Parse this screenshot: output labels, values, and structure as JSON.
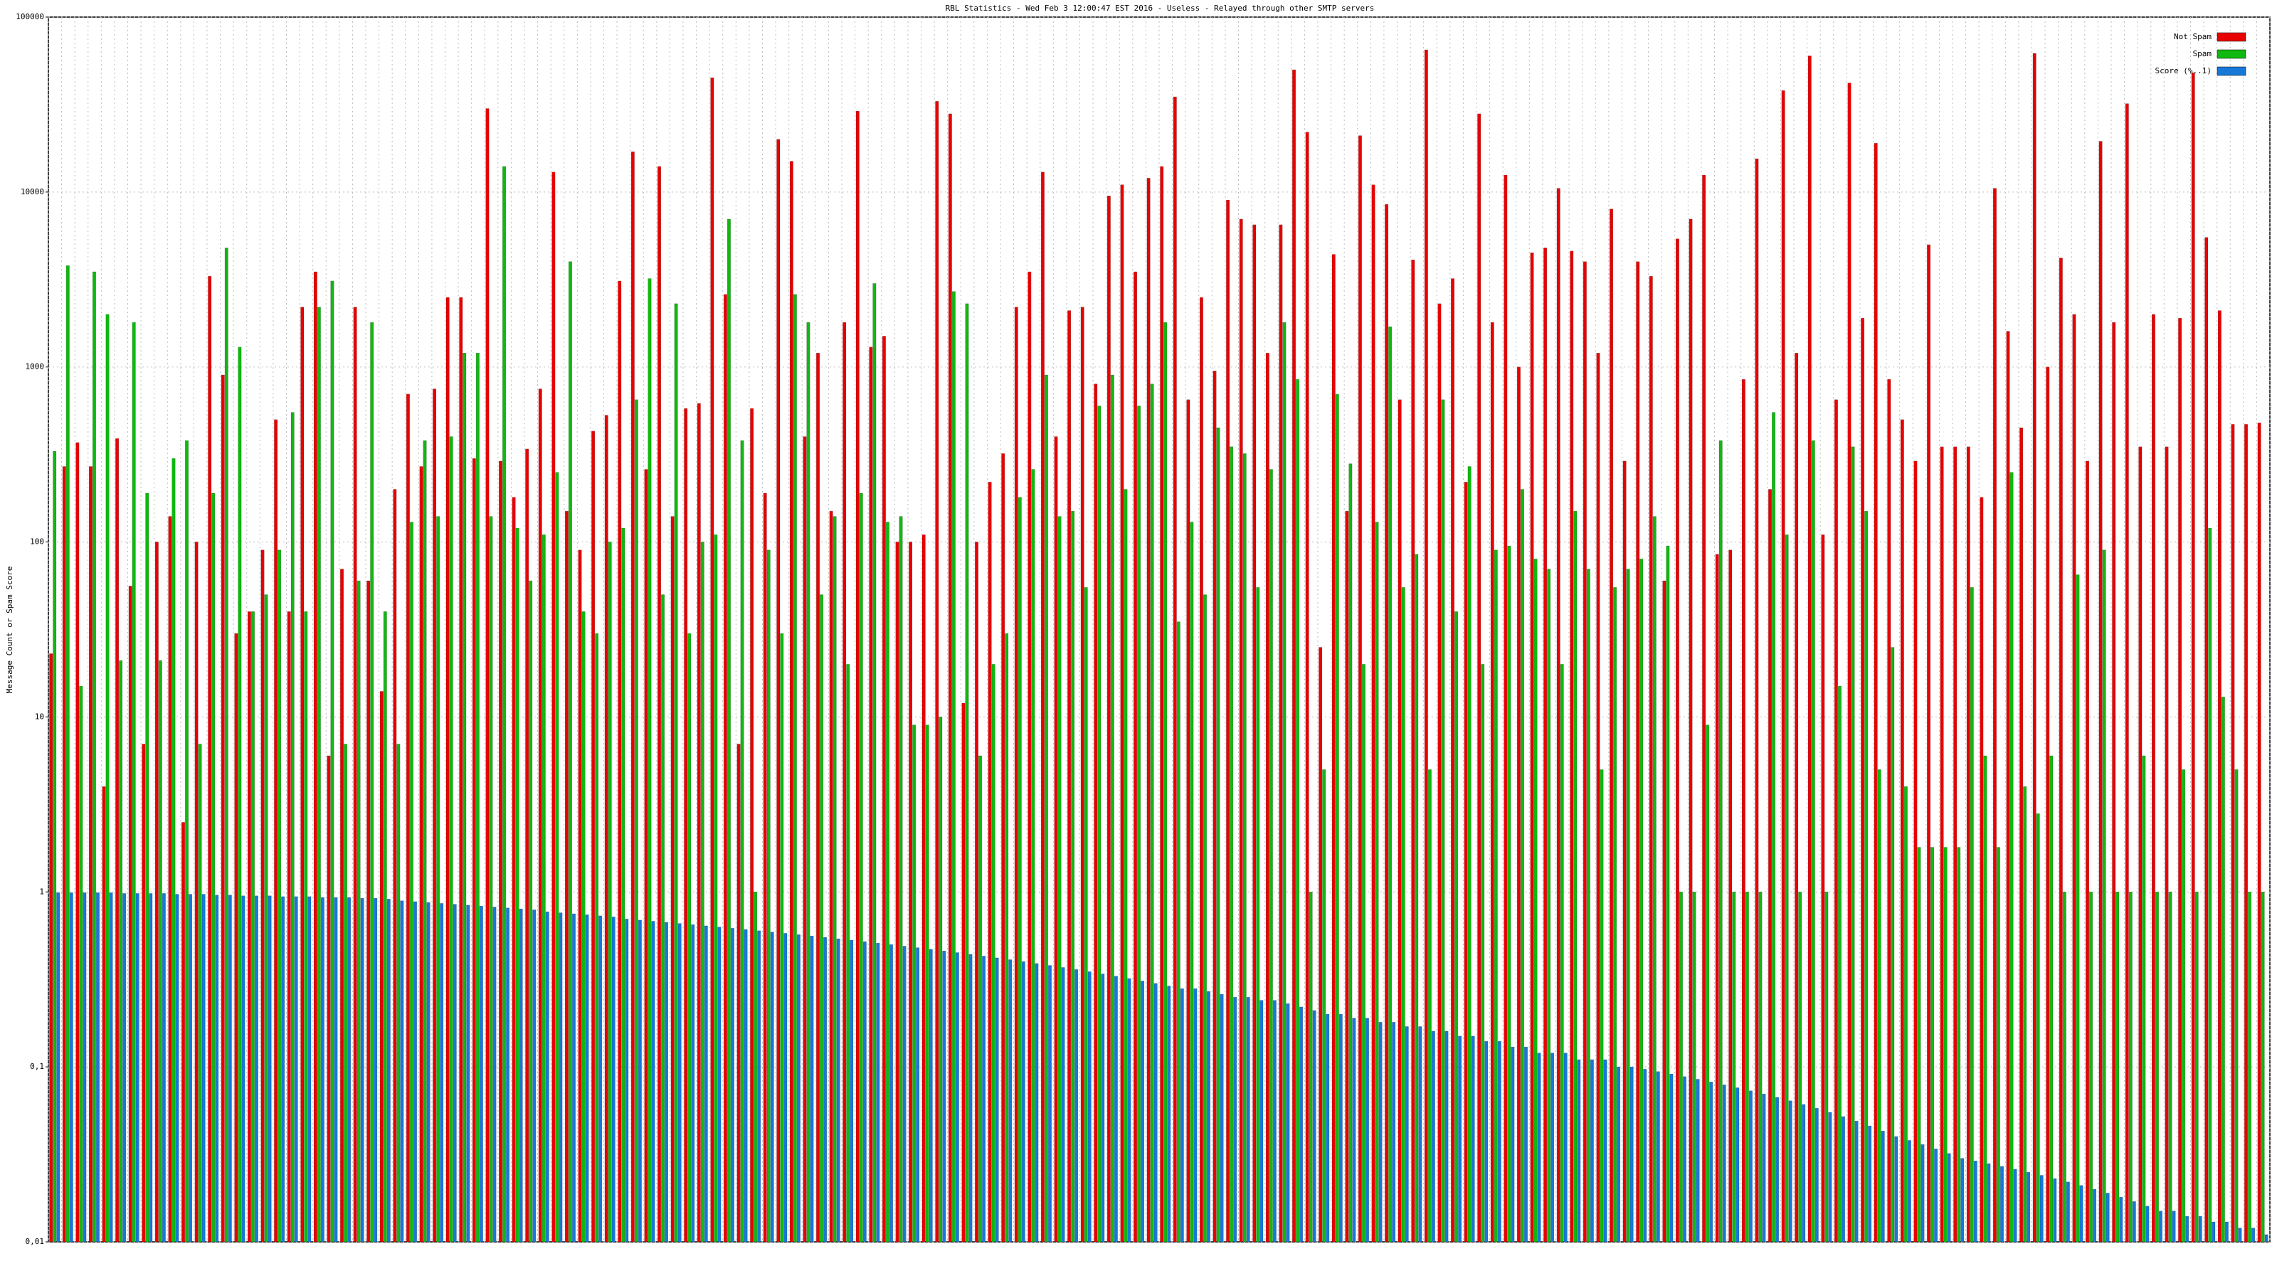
{
  "chart_data": {
    "type": "bar",
    "title": "RBL Statistics - Wed Feb  3 12:00:47 EST 2016 - Useless - Relayed through other SMTP servers",
    "y_label": "Message Count or Spam Score",
    "log_scale": true,
    "grid": true,
    "legend_position": "top-right",
    "ylim": [
      0.01,
      100000
    ],
    "yticks": [
      {
        "value": 0.01,
        "label": "0,01"
      },
      {
        "value": 0.1,
        "label": "0,1"
      },
      1,
      10,
      100,
      1000,
      10000,
      100000
    ],
    "categories": [
      null,
      null,
      null,
      null,
      null,
      null,
      null,
      null,
      null,
      null,
      null,
      null,
      null,
      null,
      null,
      null,
      null,
      null,
      null,
      null,
      null,
      null,
      null,
      null,
      null,
      null,
      null,
      null,
      null,
      null,
      null,
      null,
      null,
      null,
      null,
      null,
      null,
      null,
      null,
      null,
      null,
      null,
      null,
      null,
      null,
      null,
      null,
      null,
      null,
      null,
      null,
      null,
      null,
      null,
      null,
      null,
      null,
      null,
      null,
      null,
      null,
      null,
      null,
      null,
      null,
      null,
      null,
      null,
      null,
      null,
      null,
      null,
      null,
      null,
      null,
      null,
      null,
      null,
      null,
      null,
      null,
      null,
      null,
      null,
      null,
      null,
      null,
      null,
      null,
      null,
      null,
      null,
      null,
      null,
      null,
      null,
      null,
      null,
      null,
      null,
      null,
      null,
      null,
      null,
      null,
      null,
      null,
      null,
      null,
      null,
      null,
      null,
      null,
      null,
      null,
      null,
      null,
      null,
      null,
      null,
      null,
      null,
      null,
      null,
      null,
      null,
      null,
      null,
      null,
      null,
      null,
      null,
      null,
      null,
      null,
      null,
      null,
      null,
      null,
      null,
      null,
      null,
      null,
      null,
      null,
      null,
      null,
      null,
      null,
      null,
      null,
      null,
      null,
      null,
      null,
      null,
      null,
      null,
      null,
      null,
      null,
      null,
      null,
      null,
      null,
      null,
      null,
      null
    ],
    "series": [
      {
        "name": "Not Spam",
        "color": "#e80000",
        "values": [
          23,
          270,
          370,
          270,
          4,
          390,
          56,
          7,
          100,
          140,
          2.5,
          100,
          3300,
          900,
          30,
          40,
          90,
          500,
          40,
          2200,
          3500,
          6,
          70,
          2200,
          60,
          14,
          200,
          700,
          270,
          750,
          2500,
          2500,
          300,
          30000,
          290,
          180,
          340,
          750,
          13000,
          150,
          90,
          430,
          530,
          3100,
          17000,
          260,
          14000,
          140,
          580,
          620,
          45000,
          2600,
          7,
          580,
          190,
          20000,
          15000,
          400,
          1200,
          150,
          1800,
          29000,
          1300,
          1500,
          100,
          100,
          110,
          33000,
          28000,
          12,
          100,
          220,
          320,
          2200,
          3500,
          13000,
          400,
          2100,
          2200,
          800,
          9500,
          11000,
          3500,
          12000,
          14000,
          35000,
          650,
          2500,
          950,
          9000,
          7000,
          6500,
          1200,
          6500,
          50000,
          22000,
          25,
          4400,
          150,
          21000,
          11000,
          8500,
          650,
          4100,
          65000,
          2300,
          3200,
          220,
          28000,
          1800,
          12500,
          1000,
          4500,
          4800,
          10500,
          4600,
          4000,
          1200,
          8000,
          290,
          4000,
          3300,
          60,
          5400,
          7000,
          12500,
          85,
          90,
          850,
          15500,
          200,
          38000,
          1200,
          60000,
          110,
          650,
          42000,
          1900,
          19000,
          850,
          500,
          290,
          5000,
          350,
          350,
          350,
          180,
          10500,
          1600,
          450,
          62000,
          1000,
          4200,
          2000,
          290,
          19500,
          1800,
          32000,
          350,
          2000,
          350,
          1900,
          48000,
          5500,
          2100,
          470,
          470,
          480
        ]
      },
      {
        "name": "Spam",
        "color": "#10b810",
        "values": [
          330,
          3800,
          15,
          3500,
          2000,
          21,
          1800,
          190,
          21,
          300,
          380,
          7,
          190,
          4800,
          1300,
          40,
          50,
          90,
          550,
          40,
          2200,
          3100,
          7,
          60,
          1800,
          40,
          7,
          130,
          380,
          140,
          400,
          1200,
          1200,
          140,
          14000,
          120,
          60,
          110,
          250,
          4000,
          40,
          30,
          100,
          120,
          650,
          3200,
          50,
          2300,
          30,
          100,
          110,
          7000,
          380,
          1,
          90,
          30,
          2600,
          1800,
          50,
          140,
          20,
          190,
          3000,
          130,
          140,
          9,
          9,
          10,
          2700,
          2300,
          6,
          20,
          30,
          180,
          260,
          900,
          140,
          150,
          55,
          600,
          900,
          200,
          600,
          800,
          1800,
          35,
          130,
          50,
          450,
          350,
          320,
          55,
          260,
          1800,
          850,
          1,
          5,
          700,
          280,
          20,
          130,
          1700,
          55,
          85,
          5,
          650,
          40,
          270,
          20,
          90,
          95,
          200,
          80,
          70,
          20,
          150,
          70,
          5,
          55,
          70,
          80,
          140,
          95,
          1,
          1,
          9,
          380,
          1,
          1,
          1,
          550,
          110,
          1,
          380,
          1,
          15,
          350,
          150,
          5,
          25,
          4,
          1.8,
          1.8,
          1.8,
          1.8,
          55,
          6,
          1.8,
          250,
          4,
          2.8,
          6,
          1,
          65,
          1,
          90,
          1,
          1,
          6,
          1,
          1,
          5,
          1,
          120,
          13,
          5,
          1,
          1
        ]
      },
      {
        "name": "Score (%..1)",
        "color": "#1878d8",
        "values": [
          0.99,
          0.99,
          0.99,
          0.99,
          0.99,
          0.98,
          0.98,
          0.98,
          0.98,
          0.97,
          0.97,
          0.97,
          0.96,
          0.96,
          0.95,
          0.95,
          0.95,
          0.94,
          0.94,
          0.94,
          0.93,
          0.93,
          0.93,
          0.92,
          0.92,
          0.91,
          0.89,
          0.88,
          0.87,
          0.86,
          0.85,
          0.84,
          0.83,
          0.82,
          0.81,
          0.8,
          0.79,
          0.77,
          0.76,
          0.75,
          0.74,
          0.73,
          0.72,
          0.7,
          0.69,
          0.68,
          0.67,
          0.66,
          0.65,
          0.64,
          0.63,
          0.62,
          0.61,
          0.6,
          0.59,
          0.58,
          0.57,
          0.56,
          0.55,
          0.54,
          0.53,
          0.52,
          0.51,
          0.5,
          0.49,
          0.48,
          0.47,
          0.46,
          0.45,
          0.44,
          0.43,
          0.42,
          0.41,
          0.4,
          0.39,
          0.38,
          0.37,
          0.36,
          0.35,
          0.34,
          0.33,
          0.32,
          0.31,
          0.3,
          0.29,
          0.28,
          0.28,
          0.27,
          0.26,
          0.25,
          0.25,
          0.24,
          0.24,
          0.23,
          0.22,
          0.21,
          0.2,
          0.2,
          0.19,
          0.19,
          0.18,
          0.18,
          0.17,
          0.17,
          0.16,
          0.16,
          0.15,
          0.15,
          0.14,
          0.14,
          0.13,
          0.13,
          0.12,
          0.12,
          0.12,
          0.11,
          0.11,
          0.11,
          0.1,
          0.1,
          0.097,
          0.094,
          0.091,
          0.088,
          0.085,
          0.082,
          0.079,
          0.076,
          0.073,
          0.07,
          0.067,
          0.064,
          0.061,
          0.058,
          0.055,
          0.052,
          0.049,
          0.046,
          0.043,
          0.04,
          0.038,
          0.036,
          0.034,
          0.032,
          0.03,
          0.029,
          0.028,
          0.027,
          0.026,
          0.025,
          0.024,
          0.023,
          0.022,
          0.021,
          0.02,
          0.019,
          0.018,
          0.017,
          0.016,
          0.015,
          0.015,
          0.014,
          0.014,
          0.013,
          0.013,
          0.012,
          0.012,
          0.011
        ]
      }
    ]
  }
}
